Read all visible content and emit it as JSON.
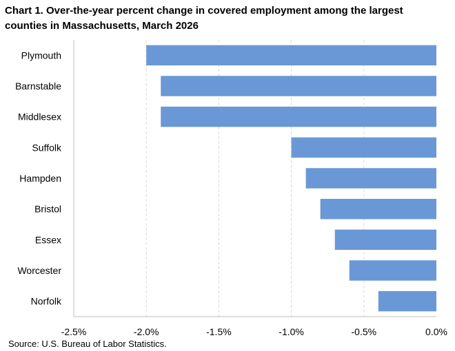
{
  "chart_title": "Chart 1. Over-the-year percent change in covered employment among the largest counties in Massachusetts, March 2026",
  "source": "Source: U.S. Bureau of Labor Statistics.",
  "colors": {
    "bar": "#6a98d6",
    "grid": "#d9d9d9",
    "axis": "#bfbfbf",
    "text": "#000000"
  },
  "chart_data": {
    "type": "bar",
    "orientation": "horizontal",
    "title": "Chart 1. Over-the-year percent change in covered employment among the largest counties in Massachusetts, March 2026",
    "xlabel": "",
    "ylabel": "",
    "categories": [
      "Plymouth",
      "Barnstable",
      "Middlesex",
      "Suffolk",
      "Hampden",
      "Bristol",
      "Essex",
      "Worcester",
      "Norfolk"
    ],
    "values": [
      -2.0,
      -1.9,
      -1.9,
      -1.0,
      -0.9,
      -0.8,
      -0.7,
      -0.6,
      -0.4
    ],
    "xlim": [
      -2.5,
      0.0
    ],
    "xticks": [
      -2.5,
      -2.0,
      -1.5,
      -1.0,
      -0.5,
      0.0
    ],
    "xtick_labels": [
      "-2.5%",
      "-2.0%",
      "-1.5%",
      "-1.0%",
      "-0.5%",
      "0.0%"
    ],
    "grid": true,
    "grid_style": "dashed vertical",
    "legend": false
  }
}
